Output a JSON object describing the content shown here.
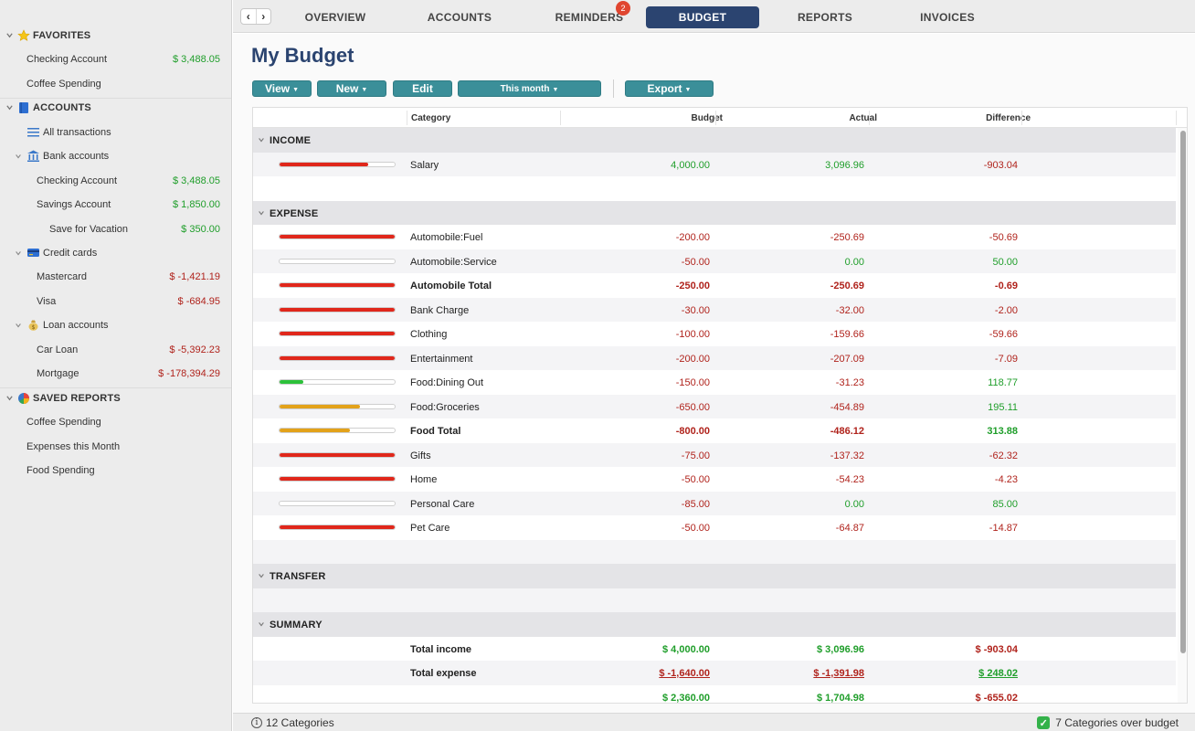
{
  "sidebar": {
    "favorites": {
      "label": "FAVORITES",
      "items": [
        {
          "label": "Checking Account",
          "value": "$ 3,488.05"
        },
        {
          "label": "Coffee Spending",
          "value": ""
        }
      ]
    },
    "accounts": {
      "label": "ACCOUNTS",
      "all_transactions": "All transactions",
      "bank": {
        "label": "Bank accounts",
        "items": [
          {
            "label": "Checking Account",
            "value": "$ 3,488.05"
          },
          {
            "label": "Savings Account",
            "value": "$ 1,850.00"
          },
          {
            "label": "Save for Vacation",
            "value": "$ 350.00"
          }
        ]
      },
      "credit": {
        "label": "Credit cards",
        "items": [
          {
            "label": "Mastercard",
            "value": "$ -1,421.19"
          },
          {
            "label": "Visa",
            "value": "$ -684.95"
          }
        ]
      },
      "loan": {
        "label": "Loan accounts",
        "items": [
          {
            "label": "Car Loan",
            "value": "$ -5,392.23"
          },
          {
            "label": "Mortgage",
            "value": "$ -178,394.29"
          }
        ]
      }
    },
    "saved_reports": {
      "label": "SAVED REPORTS",
      "items": [
        "Coffee Spending",
        "Expenses this Month",
        "Food Spending"
      ]
    }
  },
  "tabs": {
    "overview": "OVERVIEW",
    "accounts": "ACCOUNTS",
    "reminders": "REMINDERS",
    "reminders_badge": "2",
    "budget": "BUDGET",
    "reports": "REPORTS",
    "invoices": "INVOICES",
    "active": "BUDGET"
  },
  "page": {
    "title": "My Budget"
  },
  "toolbar": {
    "view": "View",
    "new": "New",
    "edit": "Edit",
    "period": "This month",
    "export": "Export"
  },
  "table": {
    "headers": {
      "category": "Category",
      "budget": "Budget",
      "actual": "Actual",
      "difference": "Difference"
    },
    "sections": {
      "income": "INCOME",
      "expense": "EXPENSE",
      "transfer": "TRANSFER",
      "summary": "SUMMARY"
    },
    "income_rows": [
      {
        "category": "Salary",
        "budget": "4,000.00",
        "actual": "3,096.96",
        "difference": "-903.04",
        "progress": 0.77,
        "color": "#e0271b"
      }
    ],
    "expense_rows": [
      {
        "category": "Automobile:Fuel",
        "budget": "-200.00",
        "actual": "-250.69",
        "difference": "-50.69",
        "progress": 1.0,
        "color": "#e0271b"
      },
      {
        "category": "Automobile:Service",
        "budget": "-50.00",
        "actual": "0.00",
        "difference": "50.00",
        "progress": 0.0,
        "color": "#e0271b"
      },
      {
        "category": "Automobile Total",
        "budget": "-250.00",
        "actual": "-250.69",
        "difference": "-0.69",
        "progress": 1.0,
        "color": "#e0271b",
        "bold": true
      },
      {
        "category": "Bank Charge",
        "budget": "-30.00",
        "actual": "-32.00",
        "difference": "-2.00",
        "progress": 1.0,
        "color": "#e0271b"
      },
      {
        "category": "Clothing",
        "budget": "-100.00",
        "actual": "-159.66",
        "difference": "-59.66",
        "progress": 1.0,
        "color": "#e0271b"
      },
      {
        "category": "Entertainment",
        "budget": "-200.00",
        "actual": "-207.09",
        "difference": "-7.09",
        "progress": 1.0,
        "color": "#e0271b"
      },
      {
        "category": "Food:Dining Out",
        "budget": "-150.00",
        "actual": "-31.23",
        "difference": "118.77",
        "progress": 0.21,
        "color": "#2cc13a"
      },
      {
        "category": "Food:Groceries",
        "budget": "-650.00",
        "actual": "-454.89",
        "difference": "195.11",
        "progress": 0.7,
        "color": "#e3a21a"
      },
      {
        "category": "Food Total",
        "budget": "-800.00",
        "actual": "-486.12",
        "difference": "313.88",
        "progress": 0.61,
        "color": "#e3a21a",
        "bold": true
      },
      {
        "category": "Gifts",
        "budget": "-75.00",
        "actual": "-137.32",
        "difference": "-62.32",
        "progress": 1.0,
        "color": "#e0271b"
      },
      {
        "category": "Home",
        "budget": "-50.00",
        "actual": "-54.23",
        "difference": "-4.23",
        "progress": 1.0,
        "color": "#e0271b"
      },
      {
        "category": "Personal Care",
        "budget": "-85.00",
        "actual": "0.00",
        "difference": "85.00",
        "progress": 0.0,
        "color": "#e0271b"
      },
      {
        "category": "Pet Care",
        "budget": "-50.00",
        "actual": "-64.87",
        "difference": "-14.87",
        "progress": 1.0,
        "color": "#e0271b"
      }
    ],
    "summary": {
      "total_income_label": "Total income",
      "total_income": {
        "budget": "$ 4,000.00",
        "actual": "$ 3,096.96",
        "difference": "$ -903.04"
      },
      "total_expense_label": "Total expense",
      "total_expense": {
        "budget": "$ -1,640.00",
        "actual": "$ -1,391.98",
        "difference": "$ 248.02"
      },
      "net": {
        "budget": "$ 2,360.00",
        "actual": "$ 1,704.98",
        "difference": "$ -655.02"
      }
    }
  },
  "status": {
    "left": "12 Categories",
    "right": "7 Categories over budget"
  },
  "colors": {
    "accent": "#2b4470",
    "button": "#3b8f99",
    "positive": "#1f9e2a",
    "negative": "#b0231c",
    "bar_red": "#e0271b",
    "bar_green": "#2cc13a",
    "bar_orange": "#e3a21a"
  }
}
